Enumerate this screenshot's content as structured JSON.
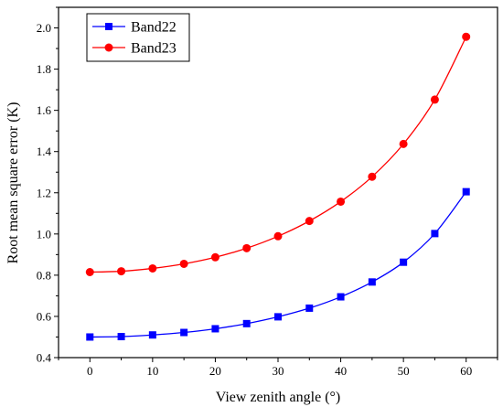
{
  "chart_data": {
    "type": "line",
    "xlabel": "View zenith angle (°)",
    "ylabel": "Root mean square error (K)",
    "xlim": [
      -5,
      65
    ],
    "ylim": [
      0.4,
      2.1
    ],
    "x_ticks": [
      0,
      10,
      20,
      30,
      40,
      50,
      60
    ],
    "y_ticks": [
      0.4,
      0.6,
      0.8,
      1.0,
      1.2,
      1.4,
      1.6,
      1.8,
      2.0
    ],
    "y_tick_labels": [
      "0.4",
      "0.6",
      "0.8",
      "1.0",
      "1.2",
      "1.4",
      "1.6",
      "1.8",
      "2.0"
    ],
    "grid": false,
    "legend_position": "top-left",
    "x": [
      0,
      5,
      10,
      15,
      20,
      25,
      30,
      35,
      40,
      45,
      50,
      55,
      60
    ],
    "series": [
      {
        "name": "Band22",
        "color": "#0000ff",
        "marker": "square",
        "values": [
          0.5,
          0.502,
          0.51,
          0.522,
          0.54,
          0.565,
          0.598,
          0.64,
          0.695,
          0.767,
          0.863,
          1.002,
          1.205
        ]
      },
      {
        "name": "Band23",
        "color": "#ff0000",
        "marker": "circle",
        "values": [
          0.815,
          0.819,
          0.833,
          0.855,
          0.887,
          0.931,
          0.989,
          1.063,
          1.157,
          1.278,
          1.437,
          1.652,
          1.957
        ]
      }
    ]
  }
}
